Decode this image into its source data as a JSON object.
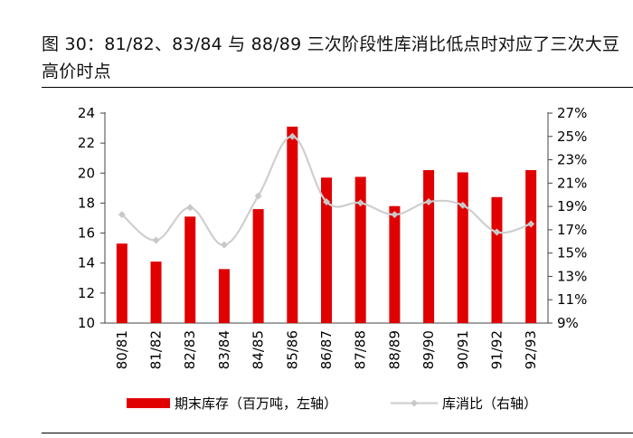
{
  "title": "图 30：81/82、83/84 与 88/89 三次阶段性库消比低点时对应了三次大豆高价时点",
  "chart_data": {
    "type": "bar",
    "categories": [
      "80/81",
      "81/82",
      "82/83",
      "83/84",
      "84/85",
      "85/86",
      "86/87",
      "87/88",
      "88/89",
      "89/90",
      "90/91",
      "91/92",
      "92/93"
    ],
    "series": [
      {
        "name": "期末库存（百万吨，左轴）",
        "type": "bar",
        "axis": "left",
        "color": "#e00000",
        "values": [
          15.3,
          14.1,
          17.1,
          13.6,
          17.6,
          23.1,
          19.7,
          19.75,
          17.8,
          20.2,
          20.05,
          18.4,
          20.2
        ]
      },
      {
        "name": "库消比（右轴）",
        "type": "line",
        "axis": "right",
        "color": "#cfcfcf",
        "values": [
          18.3,
          16.1,
          18.9,
          15.7,
          19.9,
          25.0,
          19.4,
          19.3,
          18.3,
          19.4,
          19.1,
          16.8,
          17.5
        ]
      }
    ],
    "y_left": {
      "min": 10,
      "max": 24,
      "step": 2,
      "ticks": [
        "10",
        "12",
        "14",
        "16",
        "18",
        "20",
        "22",
        "24"
      ]
    },
    "y_right": {
      "min": 9,
      "max": 27,
      "step": 2,
      "ticks": [
        "9%",
        "11%",
        "13%",
        "15%",
        "17%",
        "19%",
        "21%",
        "23%",
        "25%",
        "27%"
      ]
    },
    "legend": [
      "期末库存（百万吨，左轴）",
      "库消比（右轴）"
    ]
  }
}
